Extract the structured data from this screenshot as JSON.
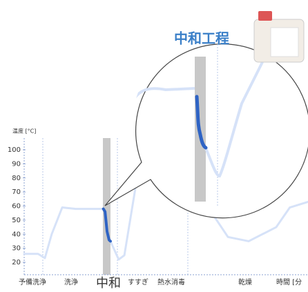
{
  "chart_data": {
    "type": "line",
    "title": "中和工程",
    "y_label": "温度 [°C]",
    "x_label": "時間 [分",
    "phases": [
      "予備洗浄",
      "洗浄",
      "中和",
      "すすぎ",
      "熱水消毒",
      "乾燥"
    ],
    "x": [
      0,
      4.9,
      7.3,
      9.7,
      13.4,
      18.2,
      27.9,
      28.5,
      29.2,
      29.9,
      30.4,
      33.3,
      35.3,
      40.1,
      47.4,
      57.2,
      64.5,
      71.8,
      79.1,
      88.8,
      93.6,
      100
    ],
    "series": [
      {
        "color": "#d6e2f8",
        "values": [
          26,
          26,
          23,
          40,
          59,
          58,
          58,
          null,
          null,
          null,
          35,
          22,
          25,
          84,
          88,
          85,
          60,
          38,
          35,
          45,
          59,
          63
        ]
      },
      {
        "color": "#2e63c4",
        "values": [
          null,
          null,
          null,
          null,
          null,
          null,
          58,
          56,
          42,
          36,
          35,
          null,
          null,
          null,
          null,
          null,
          null,
          null,
          null,
          null,
          null,
          null
        ]
      }
    ],
    "xlim": [
      0,
      100
    ],
    "ylim": [
      20,
      100
    ],
    "yticks": [
      20,
      30,
      40,
      50,
      60,
      70,
      80,
      90,
      100
    ]
  }
}
